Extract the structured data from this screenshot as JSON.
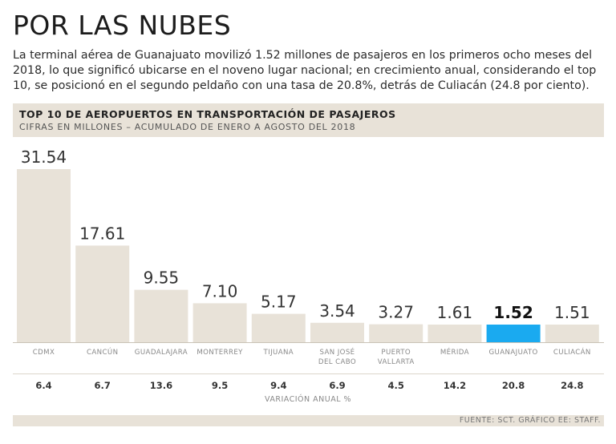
{
  "headline": "POR LAS NUBES",
  "intro": "La terminal aérea de Guanajuato movilizó 1.52 millones de pasajeros en los primeros ocho meses del 2018, lo que significó ubicarse en el noveno lugar nacional; en crecimiento anual, considerando el top 10, se posicionó en el segundo peldaño con una tasa de 20.8%, detrás de Culiacán (24.8 por ciento).",
  "colors": {
    "bar": "#e8e2d8",
    "highlight": "#1aaaf0"
  },
  "chart_data": {
    "type": "bar",
    "title": "TOP 10 DE AEROPUERTOS EN TRANSPORTACIÓN DE PASAJEROS",
    "subtitle": "CIFRAS EN MILLONES – ACUMULADO DE ENERO A AGOSTO DEL 2018",
    "categories": [
      [
        "CDMX"
      ],
      [
        "CANCÚN"
      ],
      [
        "GUADALAJARA"
      ],
      [
        "MONTERREY"
      ],
      [
        "TIJUANA"
      ],
      [
        "SAN JOSÉ",
        "DEL CABO"
      ],
      [
        "PUERTO",
        "VALLARTA"
      ],
      [
        "MÉRIDA"
      ],
      [
        "GUANAJUATO"
      ],
      [
        "CULIACÁN"
      ]
    ],
    "values": [
      31.54,
      17.61,
      9.55,
      7.1,
      5.17,
      3.54,
      3.27,
      1.61,
      1.52,
      1.51
    ],
    "value_labels": [
      "31.54",
      "17.61",
      "9.55",
      "7.10",
      "5.17",
      "3.54",
      "3.27",
      "1.61",
      "1.52",
      "1.51"
    ],
    "highlight_index": 8,
    "growth_label": "VARIACIÓN ANUAL %",
    "growth": [
      "6.4",
      "6.7",
      "13.6",
      "9.5",
      "9.4",
      "6.9",
      "4.5",
      "14.2",
      "20.8",
      "24.8"
    ],
    "ylim": [
      0,
      31.54
    ]
  },
  "source": "FUENTE: SCT. GRÁFICO EE: STAFF."
}
